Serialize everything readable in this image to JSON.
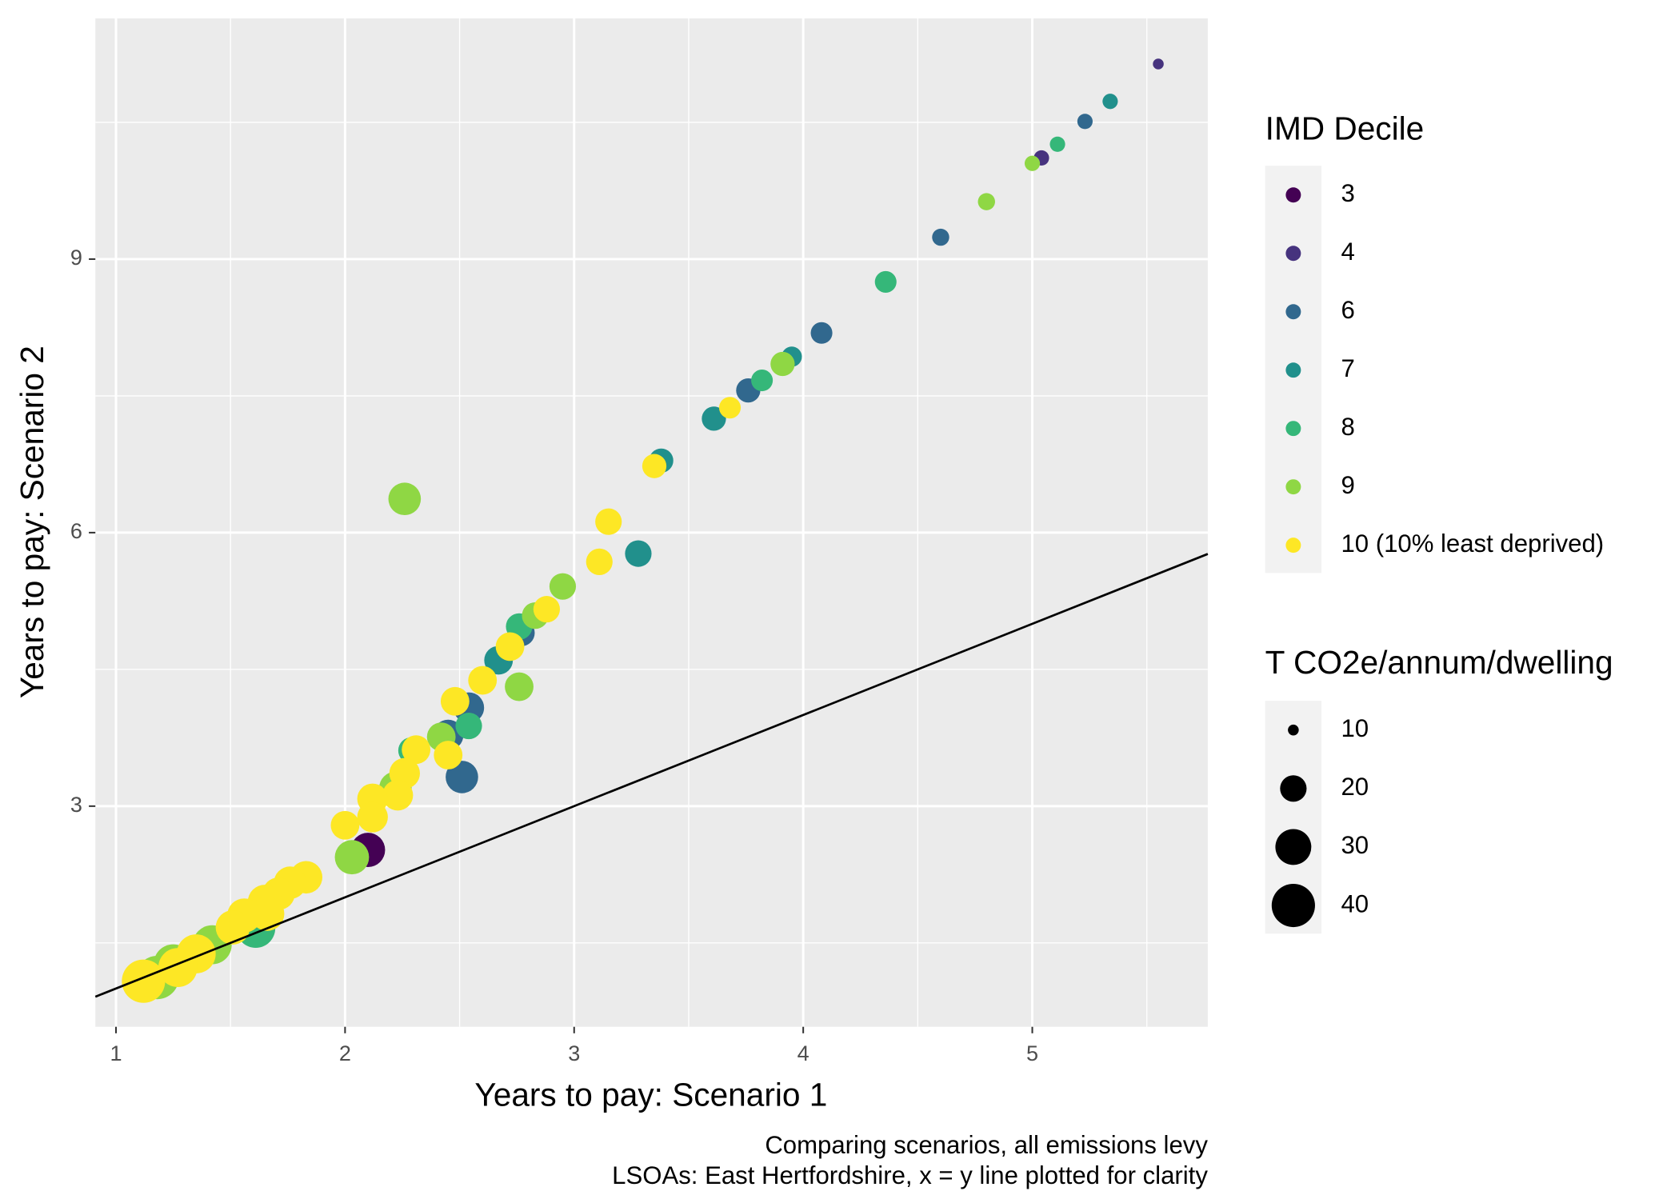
{
  "chart_data": {
    "type": "scatter",
    "x_label": "Years to pay: Scenario 1",
    "y_label": "Years to pay: Scenario 2",
    "caption": [
      "Comparing scenarios, all emissions levy",
      "LSOAs: East Hertfordshire, x = y line plotted for clarity"
    ],
    "xlim": [
      0.91,
      5.766
    ],
    "ylim": [
      0.58,
      11.64
    ],
    "xticks": [
      1,
      2,
      3,
      4,
      5
    ],
    "yticks": [
      3,
      6,
      9
    ],
    "minor_xticks": [
      1.5,
      2.5,
      3.5,
      4.5,
      5.5
    ],
    "minor_yticks": [
      1.5,
      4.5,
      7.5,
      10.5
    ],
    "grid": true,
    "identity_line": true,
    "color_legend_title": "IMD Decile",
    "size_legend": {
      "title": "T CO2e/annum/dwelling",
      "values": [
        10,
        20,
        30,
        40
      ]
    },
    "series": [
      {
        "name": "3",
        "color": "#440154",
        "x": [
          2.1
        ],
        "y": [
          2.52
        ],
        "sizes": [
          28
        ]
      },
      {
        "name": "4",
        "color": "#46337e",
        "x": [
          5.55,
          5.04
        ],
        "y": [
          11.14,
          10.11
        ],
        "sizes": [
          10,
          12
        ]
      },
      {
        "name": "6",
        "color": "#31688e",
        "x": [
          5.23,
          4.6,
          4.08,
          3.76,
          2.54,
          2.45,
          2.51,
          2.77
        ],
        "y": [
          10.51,
          9.24,
          8.19,
          7.56,
          4.08,
          3.78,
          3.32,
          4.9
        ],
        "sizes": [
          12,
          13,
          16,
          18,
          24,
          24,
          26,
          20
        ]
      },
      {
        "name": "7",
        "color": "#21908c",
        "x": [
          5.34,
          3.38,
          3.61,
          3.28,
          2.67,
          3.95
        ],
        "y": [
          10.73,
          6.79,
          7.25,
          5.77,
          4.6,
          7.93
        ],
        "sizes": [
          12,
          18,
          18,
          20,
          22,
          15
        ]
      },
      {
        "name": "8",
        "color": "#35b779",
        "x": [
          5.11,
          4.36,
          3.82,
          2.76,
          2.54,
          1.61,
          2.29
        ],
        "y": [
          10.26,
          8.75,
          7.67,
          4.97,
          3.88,
          1.66,
          3.61
        ],
        "sizes": [
          12,
          16,
          16,
          20,
          20,
          34,
          20
        ]
      },
      {
        "name": "9",
        "color": "#8fd744",
        "x": [
          5.0,
          4.8,
          3.91,
          2.95,
          2.83,
          2.76,
          2.26,
          2.22,
          2.03,
          1.42,
          1.18,
          1.25,
          2.42
        ],
        "y": [
          10.05,
          9.63,
          7.85,
          5.41,
          5.09,
          4.31,
          6.37,
          3.2,
          2.44,
          1.48,
          1.12,
          1.27,
          3.76
        ],
        "sizes": [
          12,
          13,
          18,
          20,
          20,
          22,
          26,
          26,
          28,
          34,
          40,
          34,
          22
        ]
      },
      {
        "name": "10 (10% least deprived)",
        "color": "#fde725",
        "x": [
          3.68,
          3.35,
          3.15,
          3.11,
          2.88,
          2.72,
          2.6,
          2.48,
          2.45,
          2.31,
          2.26,
          2.23,
          2.12,
          2.12,
          2.0,
          1.83,
          1.76,
          1.71,
          1.65,
          1.56,
          1.51,
          1.35,
          1.27,
          1.12,
          1.66
        ],
        "y": [
          7.37,
          6.73,
          6.12,
          5.68,
          5.16,
          4.75,
          4.38,
          4.15,
          3.56,
          3.62,
          3.36,
          3.12,
          3.08,
          2.88,
          2.79,
          2.22,
          2.16,
          2.04,
          1.95,
          1.8,
          1.67,
          1.38,
          1.23,
          1.08,
          1.82
        ],
        "sizes": [
          16,
          18,
          20,
          20,
          20,
          22,
          22,
          22,
          22,
          22,
          24,
          24,
          24,
          24,
          22,
          26,
          26,
          26,
          28,
          28,
          28,
          34,
          34,
          40,
          28
        ]
      }
    ]
  }
}
